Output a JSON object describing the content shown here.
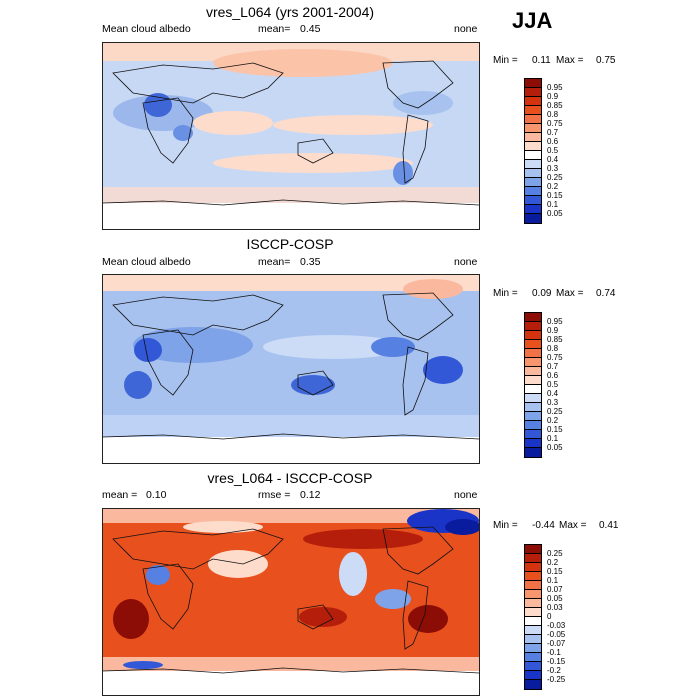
{
  "season": "JJA",
  "panels": [
    {
      "title": "vres_L064 (yrs 2001-2004)",
      "left_label": "Mean cloud albedo",
      "mid_label": "mean=",
      "mid_value": "0.45",
      "right_label": "none",
      "min_label": "Min =",
      "min_value": "0.11",
      "max_label": "Max =",
      "max_value": "0.75"
    },
    {
      "title": "ISCCP-COSP",
      "left_label": "Mean cloud albedo",
      "mid_label": "mean=",
      "mid_value": "0.35",
      "right_label": "none",
      "min_label": "Min =",
      "min_value": "0.09",
      "max_label": "Max =",
      "max_value": "0.74"
    },
    {
      "title": "vres_L064 - ISCCP-COSP",
      "left_label": "mean =",
      "left_value": "0.10",
      "mid_label": "rmse =",
      "mid_value": "0.12",
      "right_label": "none",
      "min_label": "Min =",
      "min_value": "-0.44",
      "max_label": "Max =",
      "max_value": "0.41"
    }
  ],
  "colorbars": [
    {
      "labels": [
        "0.95",
        "0.9",
        "0.85",
        "0.8",
        "0.75",
        "0.7",
        "0.6",
        "0.5",
        "0.4",
        "0.3",
        "0.25",
        "0.2",
        "0.15",
        "0.1",
        "0.05"
      ],
      "colors": [
        "#8b0d06",
        "#b41e0b",
        "#d3340f",
        "#e8501e",
        "#f27248",
        "#f7956f",
        "#fab99e",
        "#fddccc",
        "#ffffff",
        "#ccdcf7",
        "#a8c2ef",
        "#7ea3e8",
        "#5680e2",
        "#3258d8",
        "#1a34c8",
        "#0a1c9e"
      ]
    },
    {
      "labels": [
        "0.95",
        "0.9",
        "0.85",
        "0.8",
        "0.75",
        "0.7",
        "0.6",
        "0.5",
        "0.4",
        "0.3",
        "0.25",
        "0.2",
        "0.15",
        "0.1",
        "0.05"
      ],
      "colors": [
        "#8b0d06",
        "#b41e0b",
        "#d3340f",
        "#e8501e",
        "#f27248",
        "#f7956f",
        "#fab99e",
        "#fddccc",
        "#ffffff",
        "#ccdcf7",
        "#a8c2ef",
        "#7ea3e8",
        "#5680e2",
        "#3258d8",
        "#1a34c8",
        "#0a1c9e"
      ]
    },
    {
      "labels": [
        "0.25",
        "0.2",
        "0.15",
        "0.1",
        "0.07",
        "0.05",
        "0.03",
        "0",
        "-0.03",
        "-0.05",
        "-0.07",
        "-0.1",
        "-0.15",
        "-0.2",
        "-0.25"
      ],
      "colors": [
        "#8b0d06",
        "#b41e0b",
        "#d3340f",
        "#e8501e",
        "#f27248",
        "#f7956f",
        "#fab99e",
        "#fddccc",
        "#ffffff",
        "#ccdcf7",
        "#a8c2ef",
        "#7ea3e8",
        "#5680e2",
        "#3258d8",
        "#1a34c8",
        "#0a1c9e"
      ]
    }
  ],
  "chart_data": [
    {
      "type": "heatmap",
      "title": "vres_L064 (yrs 2001-2004)",
      "variable": "Mean cloud albedo",
      "mean": 0.45,
      "min": 0.11,
      "max": 0.75,
      "units": "none",
      "levels": [
        0.05,
        0.1,
        0.15,
        0.2,
        0.25,
        0.3,
        0.4,
        0.5,
        0.6,
        0.7,
        0.75,
        0.8,
        0.85,
        0.9,
        0.95
      ],
      "season": "JJA"
    },
    {
      "type": "heatmap",
      "title": "ISCCP-COSP",
      "variable": "Mean cloud albedo",
      "mean": 0.35,
      "min": 0.09,
      "max": 0.74,
      "units": "none",
      "levels": [
        0.05,
        0.1,
        0.15,
        0.2,
        0.25,
        0.3,
        0.4,
        0.5,
        0.6,
        0.7,
        0.75,
        0.8,
        0.85,
        0.9,
        0.95
      ],
      "season": "JJA"
    },
    {
      "type": "heatmap",
      "title": "vres_L064 - ISCCP-COSP",
      "variable": "difference",
      "mean": 0.1,
      "rmse": 0.12,
      "min": -0.44,
      "max": 0.41,
      "units": "none",
      "levels": [
        -0.25,
        -0.2,
        -0.15,
        -0.1,
        -0.07,
        -0.05,
        -0.03,
        0,
        0.03,
        0.05,
        0.07,
        0.1,
        0.15,
        0.2,
        0.25
      ],
      "season": "JJA"
    }
  ]
}
